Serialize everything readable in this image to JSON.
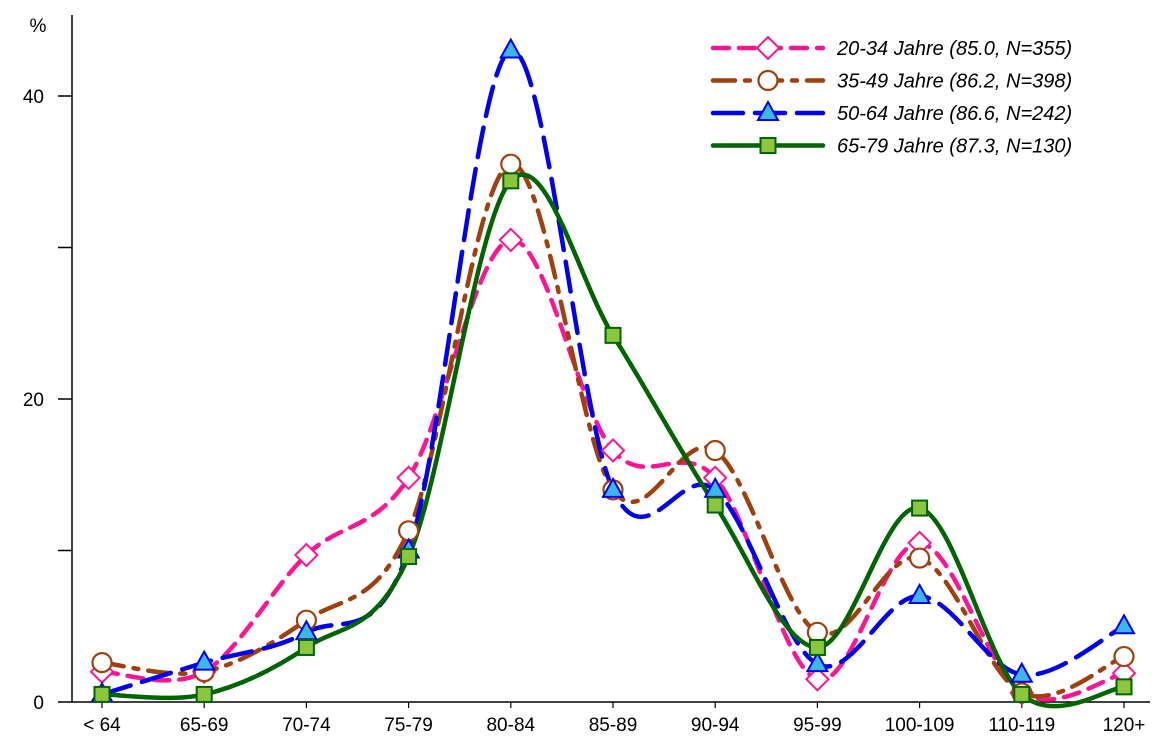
{
  "chart_data": {
    "type": "line",
    "title": "",
    "xlabel": "",
    "ylabel": "%",
    "ylim": [
      0,
      45
    ],
    "y_ticks": [
      0,
      10,
      20,
      30,
      40
    ],
    "y_tick_labels": [
      "0",
      "",
      "20",
      "",
      "40"
    ],
    "grid": false,
    "legend_position": "top-right",
    "categories": [
      "< 64",
      "65-69",
      "70-74",
      "75-79",
      "80-84",
      "85-89",
      "90-94",
      "95-99",
      "100-109",
      "110-119",
      "120+"
    ],
    "series": [
      {
        "name": "20-34 Jahre (85.0, N=355)",
        "color": "#ff1493",
        "line_style": "dashed",
        "marker": "diamond",
        "marker_fill": "#ffffff",
        "values": [
          2.0,
          2.0,
          9.7,
          14.8,
          30.5,
          16.6,
          14.8,
          1.5,
          10.5,
          0.6,
          1.9
        ]
      },
      {
        "name": "35-49 Jahre (86.2, N=398)",
        "color": "#a0410d",
        "line_style": "long-dash-dot",
        "marker": "circle",
        "marker_fill": "#ffffff",
        "values": [
          2.6,
          2.0,
          5.4,
          11.3,
          35.5,
          14.0,
          16.6,
          4.6,
          9.5,
          0.6,
          3.0
        ]
      },
      {
        "name": "50-64 Jahre (86.6, N=242)",
        "color": "#0000ee",
        "line_style": "long-dashed",
        "marker": "triangle",
        "marker_fill": "#3cb8e8",
        "values": [
          0.5,
          2.6,
          4.6,
          10.0,
          43.0,
          14.0,
          14.0,
          2.5,
          7.0,
          1.8,
          5.0
        ]
      },
      {
        "name": "65-79 Jahre (87.3, N=130)",
        "color": "#006400",
        "line_style": "solid",
        "marker": "square",
        "marker_fill": "#8cc63f",
        "values": [
          0.5,
          0.5,
          3.6,
          9.6,
          34.4,
          24.2,
          13.0,
          3.6,
          12.8,
          0.5,
          1.0
        ]
      }
    ]
  }
}
